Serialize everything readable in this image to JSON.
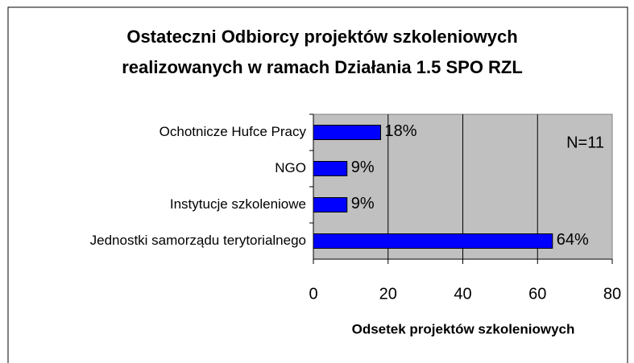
{
  "chart_data": {
    "type": "bar",
    "orientation": "horizontal",
    "title": [
      "Ostateczni Odbiorcy projektów szkoleniowych",
      "realizowanych w ramach Działania 1.5 SPO RZL"
    ],
    "categories": [
      "Ochotnicze Hufce Pracy",
      "NGO",
      "Instytucje szkoleniowe",
      "Jednostki samorządu terytorialnego"
    ],
    "values": [
      18,
      9,
      9,
      64
    ],
    "value_labels": [
      "18%",
      "9%",
      "9%",
      "64%"
    ],
    "color": "#0000ff",
    "xlim": [
      0,
      80
    ],
    "xticks": [
      0,
      20,
      40,
      60,
      80
    ],
    "grid": true,
    "xlabel": "Odsetek projektów szkoleniowych",
    "annotation": "N=11"
  }
}
